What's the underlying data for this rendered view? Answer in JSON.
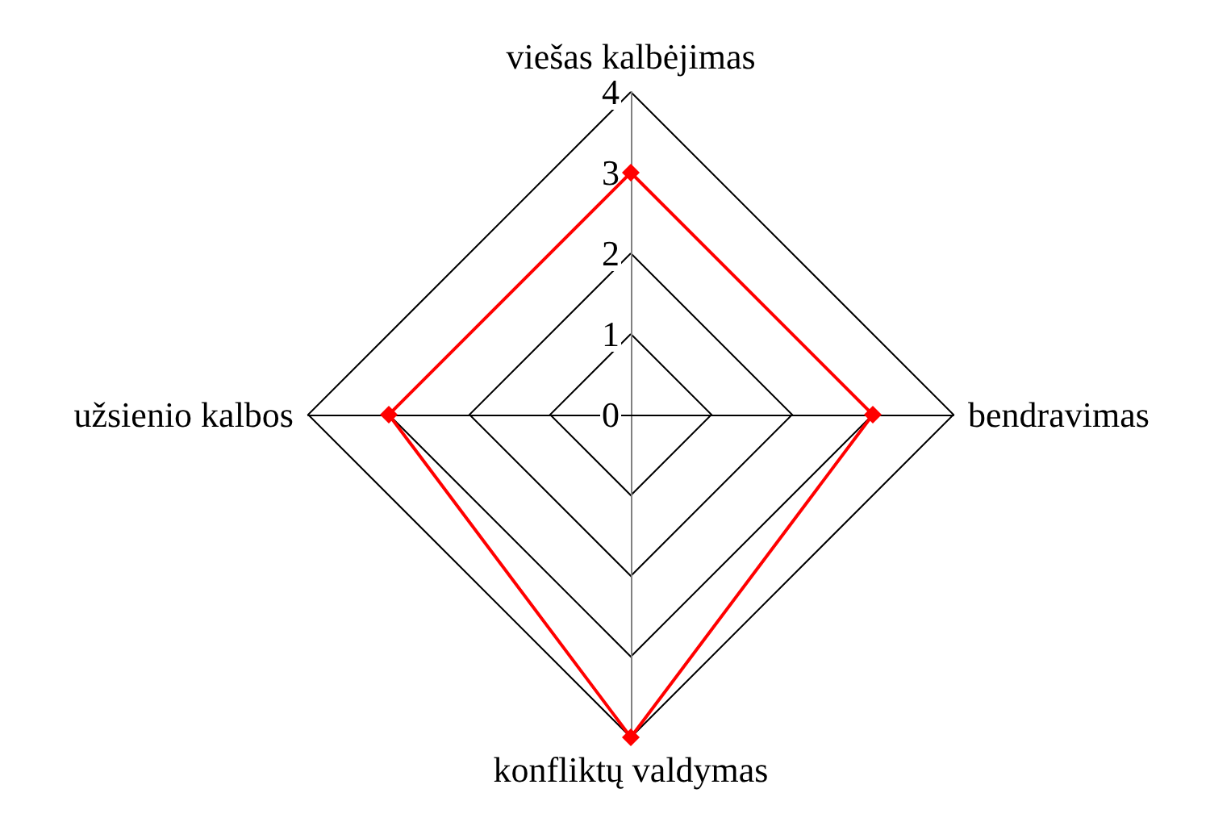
{
  "chart_data": {
    "type": "radar",
    "categories": [
      "viešas kalbėjimas",
      "bendravimas",
      "konfliktų valdymas",
      "užsienio kalbos"
    ],
    "series": [
      {
        "color": "#ff0000",
        "values": [
          3,
          3,
          4,
          3
        ]
      }
    ],
    "ylim": [
      0,
      4
    ],
    "yticks": [
      0,
      1,
      2,
      3,
      4
    ],
    "grid": true,
    "marker": "diamond",
    "line_style": "solid"
  }
}
